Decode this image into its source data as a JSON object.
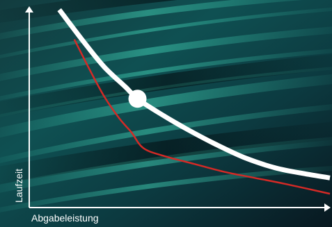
{
  "chart_data": {
    "type": "line",
    "xlabel": "Abgabeleistung",
    "ylabel": "Laufzeit",
    "xlim": [
      0,
      100
    ],
    "ylim": [
      0,
      100
    ],
    "series": [
      {
        "color": "#ffffff",
        "x": [
          10,
          18,
          25,
          32,
          36,
          43,
          52,
          62,
          72,
          82,
          92,
          100
        ],
        "y": [
          100,
          84,
          71,
          61,
          55,
          48,
          40,
          32,
          25,
          20,
          17,
          15
        ]
      },
      {
        "color": "#d42a26",
        "x": [
          15,
          20,
          25,
          30,
          34,
          38,
          45,
          55,
          65,
          75,
          85,
          100
        ],
        "y": [
          85,
          70,
          56,
          45,
          38,
          30,
          26,
          22,
          18,
          15,
          12,
          7
        ]
      }
    ],
    "highlight_point": {
      "x": 36,
      "y": 55
    },
    "grid": false,
    "legend": "none"
  }
}
